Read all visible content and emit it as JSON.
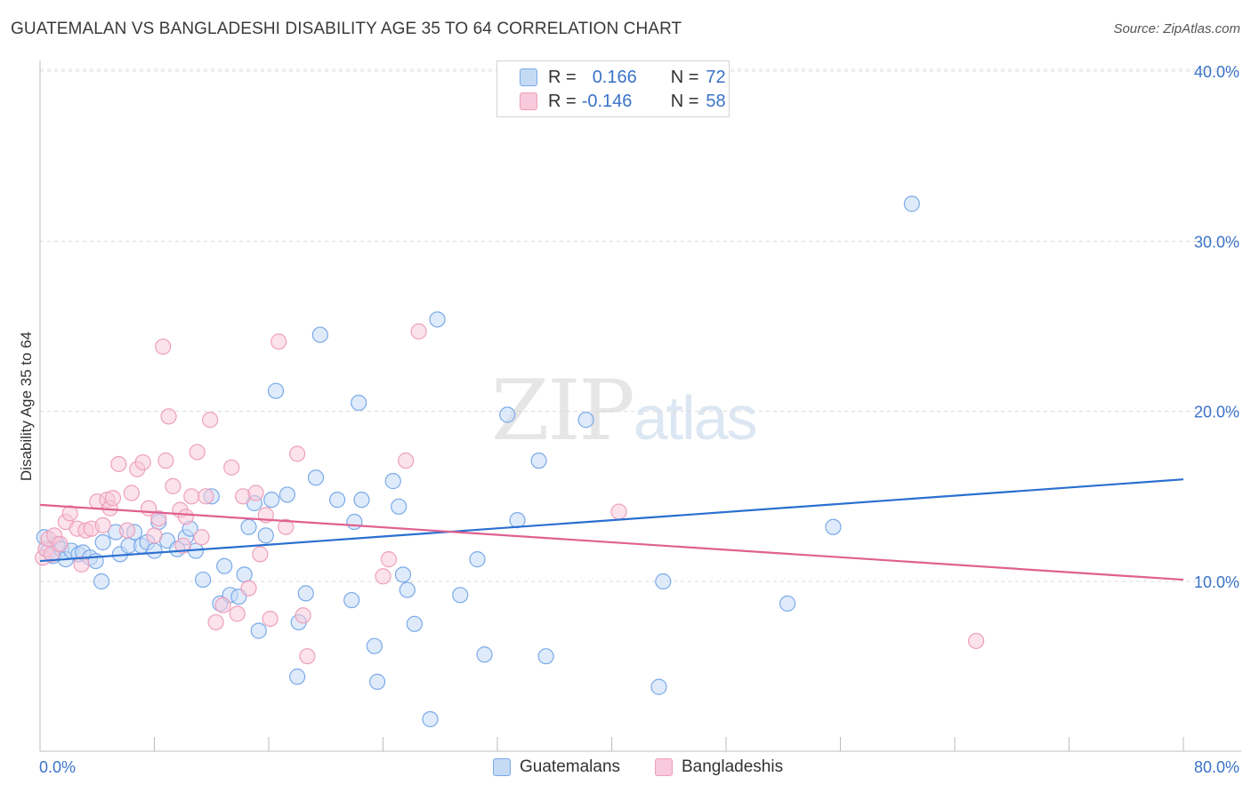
{
  "chart_data": {
    "type": "scatter",
    "title": "GUATEMALAN VS BANGLADESHI DISABILITY AGE 35 TO 64 CORRELATION CHART",
    "source": "Source: ZipAtlas.com",
    "ylabel": "Disability Age 35 to 64",
    "xlabel": "",
    "xlim": [
      0,
      80
    ],
    "ylim": [
      0,
      42
    ],
    "x_tick_labels": [
      "0.0%",
      "80.0%"
    ],
    "y_ticks": [
      10,
      20,
      30,
      40
    ],
    "y_tick_labels": [
      "10.0%",
      "20.0%",
      "30.0%",
      "40.0%"
    ],
    "grid": true,
    "watermark": {
      "zip": "ZIP",
      "atlas": "atlas"
    },
    "legend": {
      "rows": [
        {
          "r_label": "R =",
          "r_value": "0.166",
          "n_label": "N =",
          "n_value": "72"
        },
        {
          "r_label": "R =",
          "r_value": "-0.146",
          "n_label": "N =",
          "n_value": "58"
        }
      ]
    },
    "series": [
      {
        "name": "Guatemalans",
        "color": "#7aaae8",
        "fill": "#c5daf5",
        "line_color": "#2a6fd0",
        "trend": {
          "x0": 0,
          "y0": 11.2,
          "x1": 80,
          "y1": 16.0
        },
        "points": [
          [
            0.3,
            12.6
          ],
          [
            0.6,
            11.8
          ],
          [
            0.9,
            11.5
          ],
          [
            1.2,
            12.2
          ],
          [
            1.5,
            11.9
          ],
          [
            1.8,
            11.3
          ],
          [
            2.2,
            11.8
          ],
          [
            2.7,
            11.6
          ],
          [
            3.0,
            11.7
          ],
          [
            3.5,
            11.4
          ],
          [
            3.9,
            11.2
          ],
          [
            4.3,
            10.0
          ],
          [
            4.4,
            12.3
          ],
          [
            5.3,
            12.9
          ],
          [
            5.6,
            11.6
          ],
          [
            6.2,
            12.1
          ],
          [
            6.6,
            12.9
          ],
          [
            7.1,
            12.1
          ],
          [
            7.5,
            12.3
          ],
          [
            8.0,
            11.8
          ],
          [
            8.3,
            13.5
          ],
          [
            8.9,
            12.4
          ],
          [
            9.6,
            11.9
          ],
          [
            10.2,
            12.6
          ],
          [
            10.5,
            13.1
          ],
          [
            10.9,
            11.8
          ],
          [
            11.4,
            10.1
          ],
          [
            12.0,
            15.0
          ],
          [
            12.6,
            8.7
          ],
          [
            12.9,
            10.9
          ],
          [
            13.3,
            9.2
          ],
          [
            13.9,
            9.1
          ],
          [
            14.3,
            10.4
          ],
          [
            14.6,
            13.2
          ],
          [
            15.0,
            14.6
          ],
          [
            15.3,
            7.1
          ],
          [
            15.8,
            12.7
          ],
          [
            16.2,
            14.8
          ],
          [
            16.5,
            21.2
          ],
          [
            17.3,
            15.1
          ],
          [
            18.0,
            4.4
          ],
          [
            18.1,
            7.6
          ],
          [
            18.6,
            9.3
          ],
          [
            19.3,
            16.1
          ],
          [
            19.6,
            24.5
          ],
          [
            20.8,
            14.8
          ],
          [
            21.8,
            8.9
          ],
          [
            22.0,
            13.5
          ],
          [
            22.3,
            20.5
          ],
          [
            22.5,
            14.8
          ],
          [
            23.4,
            6.2
          ],
          [
            23.6,
            4.1
          ],
          [
            24.7,
            15.9
          ],
          [
            25.1,
            14.4
          ],
          [
            25.4,
            10.4
          ],
          [
            25.7,
            9.5
          ],
          [
            26.2,
            7.5
          ],
          [
            27.3,
            1.9
          ],
          [
            27.8,
            25.4
          ],
          [
            29.4,
            9.2
          ],
          [
            30.6,
            11.3
          ],
          [
            31.1,
            5.7
          ],
          [
            32.7,
            19.8
          ],
          [
            33.4,
            13.6
          ],
          [
            34.9,
            17.1
          ],
          [
            35.4,
            5.6
          ],
          [
            38.2,
            19.5
          ],
          [
            43.3,
            3.8
          ],
          [
            43.6,
            10.0
          ],
          [
            52.3,
            8.7
          ],
          [
            55.5,
            13.2
          ],
          [
            61.0,
            32.2
          ]
        ]
      },
      {
        "name": "Bangladeshis",
        "color": "#eea0bb",
        "fill": "#f8cadb",
        "line_color": "#e0608f",
        "trend": {
          "x0": 0,
          "y0": 14.5,
          "x1": 80,
          "y1": 10.1
        },
        "points": [
          [
            0.2,
            11.4
          ],
          [
            0.4,
            11.9
          ],
          [
            0.6,
            12.5
          ],
          [
            0.8,
            11.6
          ],
          [
            1.0,
            12.7
          ],
          [
            1.4,
            12.2
          ],
          [
            1.8,
            13.5
          ],
          [
            2.1,
            14.0
          ],
          [
            2.6,
            13.1
          ],
          [
            2.9,
            11.0
          ],
          [
            3.2,
            13.0
          ],
          [
            3.6,
            13.1
          ],
          [
            4.0,
            14.7
          ],
          [
            4.4,
            13.3
          ],
          [
            4.7,
            14.8
          ],
          [
            4.9,
            14.3
          ],
          [
            5.1,
            14.9
          ],
          [
            5.5,
            16.9
          ],
          [
            6.1,
            13.0
          ],
          [
            6.4,
            15.2
          ],
          [
            6.8,
            16.6
          ],
          [
            7.2,
            17.0
          ],
          [
            7.6,
            14.3
          ],
          [
            8.0,
            12.7
          ],
          [
            8.3,
            13.7
          ],
          [
            8.6,
            23.8
          ],
          [
            8.8,
            17.1
          ],
          [
            9.0,
            19.7
          ],
          [
            9.3,
            15.6
          ],
          [
            9.8,
            14.2
          ],
          [
            10.0,
            12.1
          ],
          [
            10.2,
            13.8
          ],
          [
            10.6,
            15.0
          ],
          [
            11.0,
            17.6
          ],
          [
            11.3,
            12.6
          ],
          [
            11.6,
            15.0
          ],
          [
            11.9,
            19.5
          ],
          [
            12.3,
            7.6
          ],
          [
            12.8,
            8.6
          ],
          [
            13.4,
            16.7
          ],
          [
            13.8,
            8.1
          ],
          [
            14.2,
            15.0
          ],
          [
            14.6,
            9.6
          ],
          [
            15.1,
            15.2
          ],
          [
            15.4,
            11.6
          ],
          [
            15.8,
            13.9
          ],
          [
            16.1,
            7.8
          ],
          [
            16.7,
            24.1
          ],
          [
            17.2,
            13.2
          ],
          [
            18.0,
            17.5
          ],
          [
            18.4,
            8.0
          ],
          [
            18.7,
            5.6
          ],
          [
            24.0,
            10.3
          ],
          [
            24.4,
            11.3
          ],
          [
            25.6,
            17.1
          ],
          [
            26.5,
            24.7
          ],
          [
            40.5,
            14.1
          ],
          [
            65.5,
            6.5
          ]
        ]
      }
    ]
  }
}
